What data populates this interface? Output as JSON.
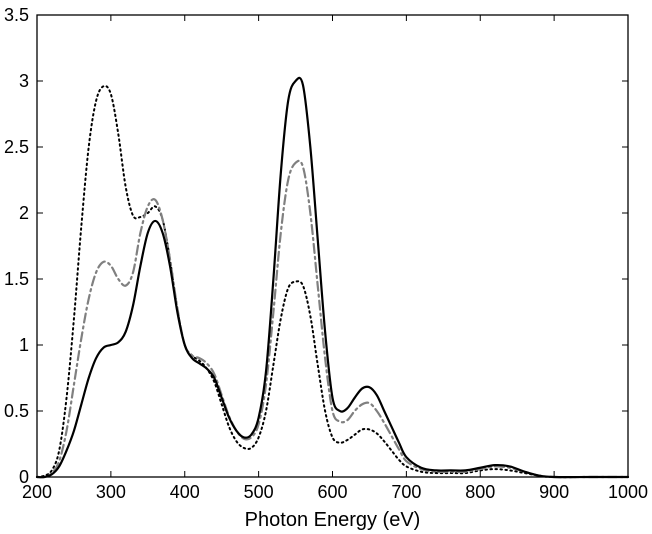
{
  "chart_data": {
    "type": "line",
    "title": "",
    "xlabel": "Photon Energy (eV)",
    "ylabel": "",
    "xlim": [
      200,
      1000
    ],
    "ylim": [
      0,
      3.5
    ],
    "grid": false,
    "x_ticks": [
      "200",
      "300",
      "400",
      "500",
      "600",
      "700",
      "800",
      "900",
      "1000"
    ],
    "y_ticks": [
      "0",
      "0.5",
      "1",
      "1.5",
      "2",
      "2.5",
      "3",
      "3.5"
    ],
    "x": [
      200,
      210,
      220,
      230,
      240,
      250,
      260,
      270,
      280,
      290,
      300,
      310,
      320,
      330,
      340,
      350,
      360,
      370,
      380,
      390,
      400,
      410,
      420,
      430,
      440,
      450,
      460,
      470,
      480,
      490,
      500,
      510,
      520,
      530,
      540,
      550,
      560,
      570,
      580,
      590,
      600,
      610,
      620,
      630,
      640,
      650,
      660,
      670,
      680,
      690,
      700,
      720,
      740,
      760,
      780,
      800,
      820,
      840,
      860,
      880,
      900,
      950,
      1000
    ],
    "series": [
      {
        "color": "#000000",
        "dash": "solid",
        "y": [
          0,
          0,
          0.02,
          0.08,
          0.2,
          0.35,
          0.55,
          0.75,
          0.9,
          0.98,
          1.0,
          1.02,
          1.1,
          1.3,
          1.6,
          1.85,
          1.94,
          1.85,
          1.6,
          1.25,
          1.0,
          0.9,
          0.86,
          0.82,
          0.75,
          0.6,
          0.45,
          0.35,
          0.3,
          0.32,
          0.45,
          0.8,
          1.5,
          2.3,
          2.85,
          3.0,
          2.97,
          2.5,
          1.8,
          1.1,
          0.6,
          0.5,
          0.52,
          0.6,
          0.67,
          0.68,
          0.62,
          0.5,
          0.38,
          0.26,
          0.15,
          0.07,
          0.05,
          0.05,
          0.05,
          0.07,
          0.09,
          0.08,
          0.04,
          0.01,
          0,
          0,
          0
        ]
      },
      {
        "color": "#808080",
        "dash": "dashdot",
        "y": [
          0,
          0,
          0.03,
          0.12,
          0.35,
          0.7,
          1.05,
          1.35,
          1.55,
          1.63,
          1.6,
          1.5,
          1.45,
          1.55,
          1.85,
          2.05,
          2.1,
          1.95,
          1.65,
          1.28,
          1.0,
          0.92,
          0.9,
          0.86,
          0.78,
          0.62,
          0.46,
          0.35,
          0.29,
          0.3,
          0.4,
          0.7,
          1.25,
          1.85,
          2.25,
          2.38,
          2.35,
          2.0,
          1.45,
          0.9,
          0.5,
          0.42,
          0.43,
          0.5,
          0.55,
          0.56,
          0.5,
          0.41,
          0.31,
          0.21,
          0.12,
          0.06,
          0.04,
          0.04,
          0.04,
          0.06,
          0.08,
          0.07,
          0.04,
          0.01,
          0,
          0,
          0
        ]
      },
      {
        "color": "#000000",
        "dash": "dotted",
        "y": [
          0,
          0.01,
          0.05,
          0.2,
          0.6,
          1.2,
          1.9,
          2.5,
          2.85,
          2.96,
          2.9,
          2.6,
          2.2,
          1.98,
          1.97,
          2.0,
          2.05,
          1.95,
          1.65,
          1.27,
          1.0,
          0.92,
          0.88,
          0.82,
          0.72,
          0.55,
          0.38,
          0.27,
          0.22,
          0.22,
          0.3,
          0.5,
          0.85,
          1.2,
          1.43,
          1.48,
          1.45,
          1.22,
          0.85,
          0.5,
          0.3,
          0.26,
          0.28,
          0.32,
          0.36,
          0.36,
          0.33,
          0.27,
          0.2,
          0.13,
          0.08,
          0.04,
          0.03,
          0.03,
          0.03,
          0.05,
          0.06,
          0.05,
          0.03,
          0.01,
          0,
          0,
          0
        ]
      }
    ]
  }
}
